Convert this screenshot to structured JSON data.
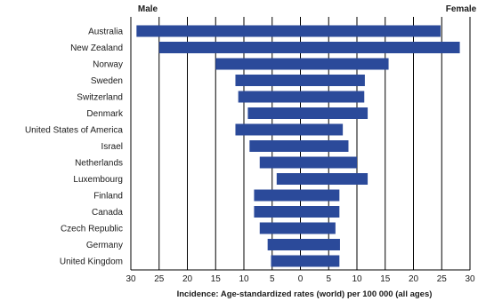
{
  "chart_data": {
    "type": "bar",
    "orientation": "horizontal-diverging",
    "side_labels": {
      "left": "Male",
      "right": "Female"
    },
    "xlabel": "Incidence: Age-standardized rates (world) per 100 000 (all ages)",
    "xlim": [
      -30,
      30
    ],
    "xticks": [
      "30",
      "25",
      "20",
      "15",
      "10",
      "5",
      "0",
      "5",
      "10",
      "15",
      "20",
      "25",
      "30"
    ],
    "grid": true,
    "bar_color": "#2b4a9a",
    "categories": [
      "Australia",
      "New Zealand",
      "Norway",
      "Sweden",
      "Switzerland",
      "Denmark",
      "United States of America",
      "Israel",
      "Netherlands",
      "Luxembourg",
      "Finland",
      "Canada",
      "Czech Republic",
      "Germany",
      "United Kingdom"
    ],
    "series": [
      {
        "name": "Male",
        "values": [
          29,
          25,
          15,
          11.5,
          11,
          9.3,
          11.5,
          9,
          7.2,
          4.2,
          8.2,
          8.2,
          7.2,
          5.8,
          5.2
        ]
      },
      {
        "name": "Female",
        "values": [
          24.8,
          28.2,
          15.6,
          11.4,
          11.3,
          11.9,
          7.5,
          8.5,
          10,
          11.9,
          6.9,
          6.9,
          6.2,
          7,
          6.9
        ]
      }
    ]
  }
}
